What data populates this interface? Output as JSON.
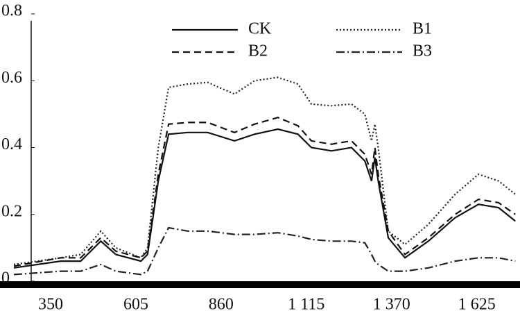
{
  "chart_data": {
    "type": "line",
    "x": [
      240,
      380,
      440,
      500,
      545,
      620,
      640,
      672,
      703,
      760,
      820,
      900,
      960,
      1030,
      1090,
      1130,
      1190,
      1250,
      1290,
      1310,
      1320,
      1330,
      1360,
      1410,
      1480,
      1560,
      1630,
      1690,
      1740
    ],
    "series": [
      {
        "name": "CK",
        "color": "#111111",
        "dash": "solid",
        "values": [
          0.04,
          0.06,
          0.06,
          0.12,
          0.08,
          0.06,
          0.08,
          0.3,
          0.44,
          0.445,
          0.445,
          0.42,
          0.44,
          0.455,
          0.44,
          0.4,
          0.39,
          0.4,
          0.36,
          0.3,
          0.37,
          0.3,
          0.13,
          0.07,
          0.12,
          0.19,
          0.23,
          0.22,
          0.18
        ]
      },
      {
        "name": "B1",
        "color": "#222222",
        "dash": "dotted",
        "values": [
          0.05,
          0.07,
          0.08,
          0.15,
          0.1,
          0.07,
          0.1,
          0.4,
          0.58,
          0.59,
          0.595,
          0.56,
          0.6,
          0.61,
          0.59,
          0.53,
          0.525,
          0.53,
          0.5,
          0.42,
          0.47,
          0.4,
          0.15,
          0.11,
          0.17,
          0.26,
          0.32,
          0.3,
          0.26
        ]
      },
      {
        "name": "B2",
        "color": "#111111",
        "dash": "dashed",
        "values": [
          0.045,
          0.07,
          0.07,
          0.13,
          0.09,
          0.07,
          0.09,
          0.32,
          0.47,
          0.475,
          0.475,
          0.445,
          0.47,
          0.49,
          0.465,
          0.42,
          0.41,
          0.42,
          0.38,
          0.32,
          0.4,
          0.32,
          0.15,
          0.08,
          0.13,
          0.2,
          0.245,
          0.235,
          0.2
        ]
      },
      {
        "name": "B3",
        "color": "#222222",
        "dash": "dashdot",
        "values": [
          0.02,
          0.03,
          0.03,
          0.05,
          0.03,
          0.02,
          0.03,
          0.1,
          0.16,
          0.15,
          0.15,
          0.14,
          0.14,
          0.145,
          0.135,
          0.125,
          0.12,
          0.12,
          0.115,
          0.08,
          0.06,
          0.05,
          0.03,
          0.03,
          0.04,
          0.06,
          0.07,
          0.07,
          0.06
        ]
      }
    ],
    "xlim": [
      240,
      1750
    ],
    "xticks": [
      350,
      605,
      860,
      {
        "value": 1115,
        "label": "1 115"
      },
      {
        "value": 1370,
        "label": "1 370"
      },
      {
        "value": 1625,
        "label": "1 625"
      }
    ],
    "ylim": [
      0,
      0.8
    ],
    "yticks": [
      0,
      0.2,
      0.4,
      0.6,
      0.8
    ],
    "grid": false,
    "legend": "top"
  }
}
